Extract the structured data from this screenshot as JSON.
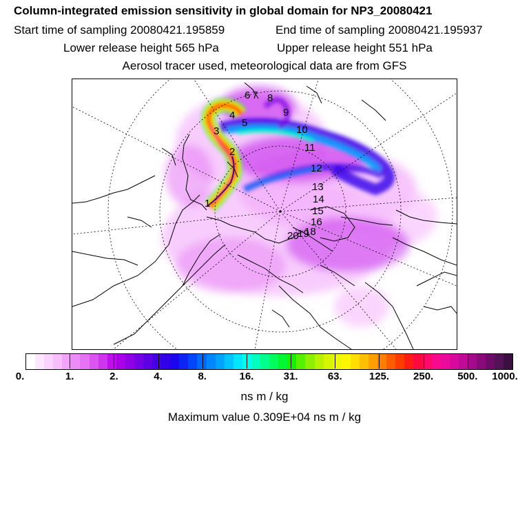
{
  "title": "Column-integrated emission sensitivity in global domain for NP3_20080421",
  "start_time": "Start time of sampling 20080421.195859",
  "end_time": "End time of sampling 20080421.195937",
  "lower_release": "Lower release height  565 hPa",
  "upper_release": "Upper release height  551 hPa",
  "aerosol_note": "Aerosol tracer used, meteorological data are from GFS",
  "track_labels": [
    "1",
    "2",
    "3",
    "4",
    "5",
    "6",
    "7",
    "8",
    "9",
    "10",
    "11",
    "12",
    "13",
    "14",
    "15",
    "16",
    "18",
    "19",
    "20"
  ],
  "colorbar": {
    "colors": [
      "#ffffff",
      "#fde6ff",
      "#fbd3ff",
      "#f8bdfd",
      "#f2a4fb",
      "#ec8cf7",
      "#e573f4",
      "#dc55f0",
      "#cf34ee",
      "#bd10ea",
      "#a900e7",
      "#8f00e6",
      "#7600e5",
      "#5e00e6",
      "#4500e6",
      "#3100e9",
      "#1c06ee",
      "#0d24f4",
      "#0046ff",
      "#0067ff",
      "#0086ff",
      "#00a4ff",
      "#00c4ff",
      "#00e6ff",
      "#00ffea",
      "#00ffc0",
      "#00ff8c",
      "#00fe5c",
      "#00f532",
      "#15f000",
      "#56f000",
      "#8ef000",
      "#b8f200",
      "#d8f500",
      "#eef800",
      "#fdf600",
      "#ffde00",
      "#ffc000",
      "#ff9f00",
      "#ff7e00",
      "#ff5c00",
      "#ff3c00",
      "#ff1c14",
      "#ff0a3e",
      "#ff0a6b",
      "#f70a8e",
      "#eb0a9e",
      "#d80a9e",
      "#c20a98",
      "#a50a8a",
      "#8a0a7a",
      "#6e0a68",
      "#521255",
      "#3a1040"
    ],
    "ticks": [
      "0.",
      "1.",
      "2.",
      "4.",
      "8.",
      "16.",
      "31.",
      "63.",
      "125.",
      "250.",
      "500.",
      "1000."
    ]
  },
  "unit": "ns m / kg",
  "max_value": "Maximum value  0.309E+04 ns m / kg"
}
